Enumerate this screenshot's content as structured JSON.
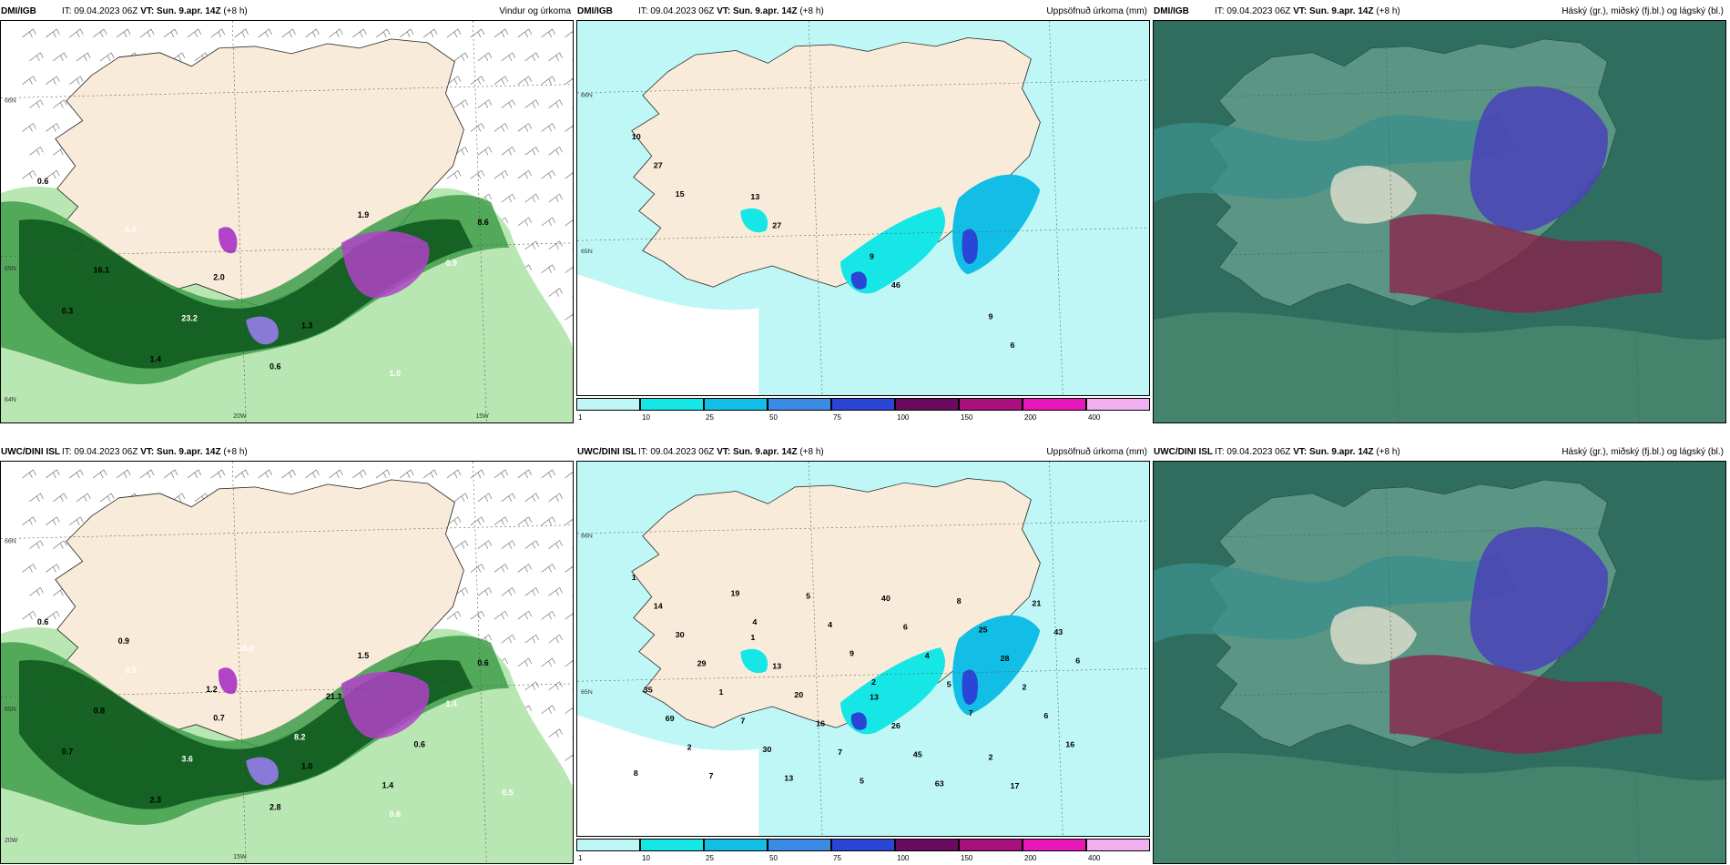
{
  "panels": [
    {
      "model": "DMI/IGB",
      "init": "IT: 09.04.2023 06Z",
      "vt": "VT: Sun. 9.apr. 14Z",
      "lead": "(+8 h)",
      "title": "Vindur og úrkoma",
      "type": "wind-precip",
      "grid_labels": [
        "66N",
        "65N",
        "64N",
        "20W",
        "15W"
      ],
      "values": [
        "0.6",
        "6.0",
        "2.0",
        "1.3",
        "1.0",
        "8.6",
        "16.1",
        "23.2",
        "0.6",
        "1.9",
        "0.9",
        "0.3",
        "1.4"
      ]
    },
    {
      "model": "DMI/IGB",
      "init": "IT: 09.04.2023 06Z",
      "vt": "VT: Sun. 9.apr. 14Z",
      "lead": "(+8 h)",
      "title": "Uppsöfnuð úrkoma (mm)",
      "type": "accum",
      "grid_labels": [
        "66N",
        "65N"
      ],
      "values": [
        "10",
        "13",
        "9",
        "9",
        "27",
        "27",
        "46",
        "6",
        "15"
      ]
    },
    {
      "model": "DMI/IGB",
      "init": "IT: 09.04.2023 06Z",
      "vt": "VT: Sun. 9.apr. 14Z",
      "lead": "(+8 h)",
      "title": "Háský (gr.), miðský (fj.bl.) og lágský (bl.)",
      "type": "clouds",
      "grid_labels": [],
      "values": []
    },
    {
      "model": "UWC/DINI ISL",
      "init": "IT: 09.04.2023 06Z",
      "vt": "VT: Sun. 9.apr. 14Z",
      "lead": "(+8 h)",
      "title": "",
      "type": "wind-precip",
      "grid_labels": [
        "66N",
        "65N",
        "20W",
        "15W"
      ],
      "values": [
        "0.6",
        "0.5",
        "0.7",
        "1.0",
        "0.6",
        "0.6",
        "0.8",
        "3.6",
        "2.8",
        "1.5",
        "1.4",
        "0.7",
        "2.3",
        "16.0",
        "21.3",
        "0.6",
        "0.5",
        "0.9",
        "1.2",
        "8.2",
        "1.4"
      ]
    },
    {
      "model": "UWC/DINI ISL",
      "init": "IT: 09.04.2023 06Z",
      "vt": "VT: Sun. 9.apr. 14Z",
      "lead": "(+8 h)",
      "title": "Uppsöfnuð úrkoma (mm)",
      "type": "accum",
      "grid_labels": [
        "66N",
        "65N"
      ],
      "values": [
        "1",
        "1",
        "13",
        "2",
        "14",
        "13",
        "26",
        "17",
        "30",
        "20",
        "45",
        "21",
        "29",
        "16",
        "63",
        "43",
        "1",
        "7",
        "8",
        "6",
        "7",
        "5",
        "25",
        "35",
        "30",
        "40",
        "28",
        "69",
        "13",
        "6",
        "2",
        "2",
        "5",
        "4",
        "6",
        "7",
        "4",
        "5",
        "16",
        "19",
        "9",
        "7",
        "8",
        "4",
        "2"
      ]
    },
    {
      "model": "UWC/DINI ISL",
      "init": "IT: 09.04.2023 06Z",
      "vt": "VT: Sun. 9.apr. 14Z",
      "lead": "(+8 h)",
      "title": "Háský (gr.), miðský (fj.bl.) og lágský (bl.)",
      "type": "clouds",
      "grid_labels": [],
      "values": []
    }
  ],
  "colorbar": {
    "ticks": [
      "1",
      "10",
      "25",
      "50",
      "75",
      "100",
      "150",
      "200",
      "400"
    ],
    "colors": [
      "#bff7f7",
      "#16e6e6",
      "#12bde6",
      "#3b8ae6",
      "#2a46d6",
      "#6a0a5e",
      "#a8107e",
      "#e818b8",
      "#f3b0f0"
    ]
  },
  "colors": {
    "land": "#f8ebd9",
    "ocean_accum": "#bff7f7",
    "ocean_wind": "#ffffff",
    "green_dark": "#0f5a1e",
    "green_mid": "#3f9e4a",
    "green_light": "#b9e7b3",
    "purple": "#b043c8",
    "cloud_teal": "#2f6e5f",
    "cloud_blue": "#4a46b6",
    "cloud_red": "#8e1f4a"
  }
}
